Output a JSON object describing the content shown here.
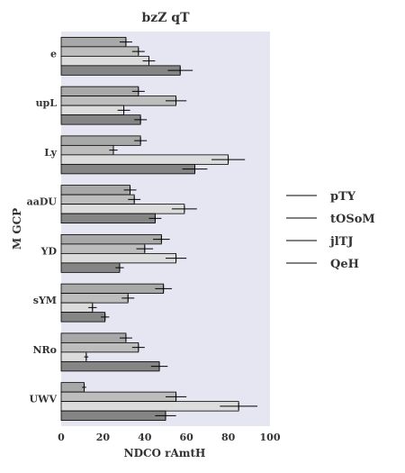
{
  "chart_data": {
    "type": "bar",
    "orientation": "horizontal",
    "title": "bzZ qT",
    "xlabel": "NDCO rAmtH",
    "ylabel": "M GCP",
    "xlim": [
      0,
      100
    ],
    "xticks": [
      0,
      20,
      40,
      60,
      80,
      100
    ],
    "categories": [
      "e",
      "upL",
      "Ly",
      "aaDU",
      "YD",
      "sYM",
      "NRo",
      "UWV"
    ],
    "series": [
      {
        "name": "pTY",
        "color": "#a8a8a8",
        "values": [
          31,
          37,
          38,
          33,
          48,
          49,
          31,
          11
        ],
        "errors": [
          3,
          3,
          3,
          3,
          4,
          4,
          3,
          1
        ]
      },
      {
        "name": "tOSoM",
        "color": "#bdbdbd",
        "values": [
          37,
          55,
          25,
          35,
          40,
          32,
          37,
          55
        ],
        "errors": [
          3,
          5,
          2,
          3,
          4,
          3,
          3,
          5
        ]
      },
      {
        "name": "jlTJ",
        "color": "#dcdcdc",
        "values": [
          42,
          30,
          80,
          59,
          55,
          15,
          12,
          85
        ],
        "errors": [
          3,
          3,
          8,
          6,
          5,
          2,
          1,
          9
        ]
      },
      {
        "name": "QeH",
        "color": "#858585",
        "values": [
          57,
          38,
          64,
          45,
          28,
          21,
          47,
          50
        ],
        "errors": [
          6,
          3,
          6,
          3,
          2,
          2,
          4,
          5
        ]
      }
    ],
    "legend_position": "right",
    "plot_background": "#e6e6f2",
    "error_bar_color": "#000000"
  }
}
